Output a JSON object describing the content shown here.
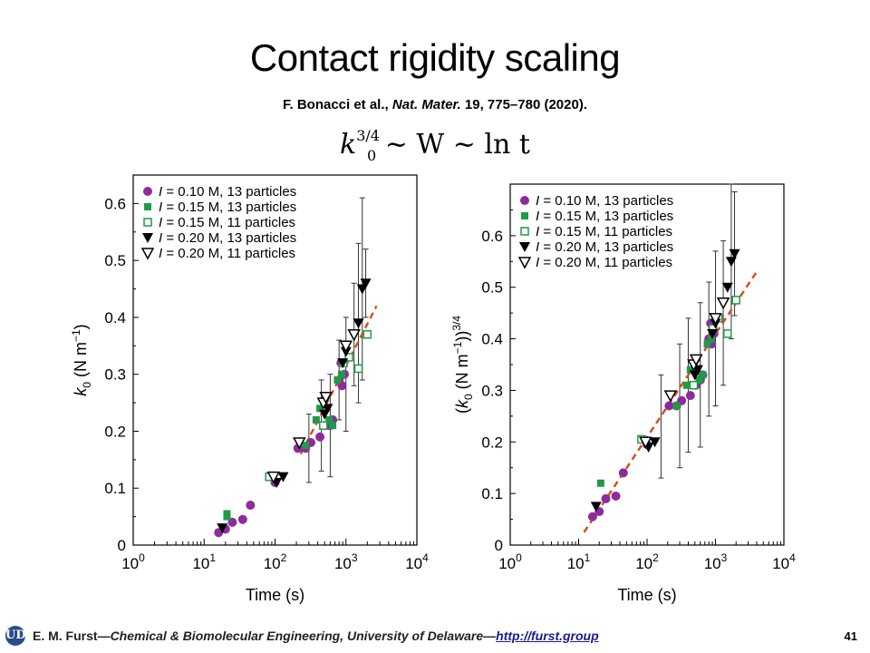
{
  "slide": {
    "title": "Contact rigidity scaling",
    "citation_authors": "F. Bonacci et al., ",
    "citation_journal": "Nat. Mater.",
    "citation_rest": " 19, 775–780 (2020).",
    "equation": {
      "base": "k",
      "sup": "3/4",
      "sub": "0",
      "rest": " ∼ W ∼ ln t"
    }
  },
  "footer": {
    "logo": "UD",
    "author": "E. M. Furst",
    "separator": "—",
    "affiliation": "Chemical & Biomolecular Engineering, University of Delaware",
    "link": "http://furst.group",
    "page": "41"
  },
  "colors": {
    "purple": "#8e2b9c",
    "green": "#1f9b48",
    "black": "#000000",
    "fit": "#d64a1c"
  },
  "chart_data": [
    {
      "type": "scatter",
      "xlabel": "Time (s)",
      "ylabel": "k0 (N m−1)",
      "xscale": "log",
      "xlim": [
        1,
        10000
      ],
      "ylim": [
        0,
        0.65
      ],
      "xticks": [
        "10^0",
        "10^1",
        "10^2",
        "10^3",
        "10^4"
      ],
      "yticks": [
        "0",
        "0.1",
        "0.2",
        "0.3",
        "0.4",
        "0.5",
        "0.6"
      ],
      "legend": "top-left",
      "series": [
        {
          "name": "I = 0.10 M, 13 particles",
          "marker": "circle",
          "points": [
            [
              16,
              0.022
            ],
            [
              20,
              0.028
            ],
            [
              25,
              0.04
            ],
            [
              35,
              0.045
            ],
            [
              45,
              0.07
            ],
            [
              100,
              0.11
            ],
            [
              210,
              0.17
            ],
            [
              270,
              0.17
            ],
            [
              320,
              0.18
            ],
            [
              430,
              0.19
            ],
            [
              520,
              0.21
            ],
            [
              600,
              0.21
            ],
            [
              650,
              0.22
            ],
            [
              800,
              0.29
            ],
            [
              850,
              0.32
            ],
            [
              880,
              0.28
            ],
            [
              950,
              0.3
            ]
          ]
        },
        {
          "name": "I = 0.15 M, 13 particles",
          "marker": "square",
          "points": [
            [
              21,
              0.05
            ],
            [
              21,
              0.055
            ],
            [
              270,
              0.175
            ],
            [
              380,
              0.22
            ],
            [
              430,
              0.24
            ],
            [
              580,
              0.22
            ],
            [
              650,
              0.21
            ],
            [
              760,
              0.29
            ],
            [
              870,
              0.3
            ]
          ]
        },
        {
          "name": "I = 0.15 M, 11 particles",
          "marker": "open-square",
          "points": [
            [
              83,
              0.12
            ],
            [
              480,
              0.21
            ],
            [
              920,
              0.32
            ],
            [
              1100,
              0.33
            ],
            [
              1500,
              0.31
            ],
            [
              2000,
              0.37
            ]
          ]
        },
        {
          "name": "I = 0.20 M, 13 particles",
          "marker": "triangle-down",
          "points": [
            [
              18,
              0.03
            ],
            [
              105,
              0.11
            ],
            [
              130,
              0.12
            ],
            [
              500,
              0.23
            ],
            [
              550,
              0.24
            ],
            [
              900,
              0.32
            ],
            [
              1000,
              0.34
            ],
            [
              1500,
              0.39
            ],
            [
              1700,
              0.45
            ],
            [
              1900,
              0.46
            ]
          ]
        },
        {
          "name": "I = 0.20 M, 11 particles",
          "marker": "open-triangle-down",
          "points": [
            [
              95,
              0.12
            ],
            [
              220,
              0.18
            ],
            [
              480,
              0.25
            ],
            [
              520,
              0.26
            ],
            [
              1000,
              0.35
            ],
            [
              1300,
              0.37
            ]
          ]
        }
      ],
      "errorbars": [
        [
          300,
          0.17,
          0.06
        ],
        [
          450,
          0.21,
          0.08
        ],
        [
          600,
          0.21,
          0.09
        ],
        [
          800,
          0.29,
          0.07
        ],
        [
          1000,
          0.3,
          0.1
        ],
        [
          1300,
          0.37,
          0.09
        ],
        [
          1500,
          0.39,
          0.14
        ],
        [
          1700,
          0.45,
          0.16
        ],
        [
          1900,
          0.46,
          0.06
        ]
      ],
      "fit": {
        "style": "dashed",
        "points": [
          [
            230,
            0.16
          ],
          [
            2700,
            0.42
          ]
        ]
      }
    },
    {
      "type": "scatter",
      "xlabel": "Time (s)",
      "ylabel": "(k0 (N m−1))3/4",
      "xscale": "log",
      "xlim": [
        1,
        10000
      ],
      "ylim": [
        0,
        0.7
      ],
      "xticks": [
        "10^0",
        "10^1",
        "10^2",
        "10^3",
        "10^4"
      ],
      "yticks": [
        "0",
        "0.1",
        "0.2",
        "0.3",
        "0.4",
        "0.5",
        "0.6"
      ],
      "legend": "top-left",
      "series": [
        {
          "name": "I = 0.10 M, 13 particles",
          "marker": "circle",
          "points": [
            [
              16,
              0.055
            ],
            [
              20,
              0.065
            ],
            [
              25,
              0.09
            ],
            [
              35,
              0.095
            ],
            [
              45,
              0.14
            ],
            [
              100,
              0.195
            ],
            [
              210,
              0.27
            ],
            [
              270,
              0.27
            ],
            [
              320,
              0.28
            ],
            [
              430,
              0.29
            ],
            [
              520,
              0.31
            ],
            [
              600,
              0.32
            ],
            [
              650,
              0.33
            ],
            [
              800,
              0.4
            ],
            [
              850,
              0.43
            ],
            [
              880,
              0.39
            ],
            [
              950,
              0.41
            ]
          ]
        },
        {
          "name": "I = 0.15 M, 13 particles",
          "marker": "square",
          "points": [
            [
              21,
              0.12
            ],
            [
              270,
              0.27
            ],
            [
              380,
              0.31
            ],
            [
              430,
              0.34
            ],
            [
              580,
              0.32
            ],
            [
              650,
              0.33
            ],
            [
              760,
              0.39
            ],
            [
              870,
              0.4
            ]
          ]
        },
        {
          "name": "I = 0.15 M, 11 particles",
          "marker": "open-square",
          "points": [
            [
              83,
              0.205
            ],
            [
              480,
              0.31
            ],
            [
              920,
              0.42
            ],
            [
              1100,
              0.44
            ],
            [
              1500,
              0.41
            ],
            [
              2000,
              0.475
            ]
          ]
        },
        {
          "name": "I = 0.20 M, 13 particles",
          "marker": "triangle-down",
          "points": [
            [
              18,
              0.075
            ],
            [
              105,
              0.19
            ],
            [
              130,
              0.2
            ],
            [
              500,
              0.33
            ],
            [
              550,
              0.34
            ],
            [
              900,
              0.41
            ],
            [
              1000,
              0.43
            ],
            [
              1500,
              0.5
            ],
            [
              1700,
              0.55
            ],
            [
              1900,
              0.565
            ]
          ]
        },
        {
          "name": "I = 0.20 M, 11 particles",
          "marker": "open-triangle-down",
          "points": [
            [
              95,
              0.2
            ],
            [
              220,
              0.29
            ],
            [
              480,
              0.35
            ],
            [
              520,
              0.36
            ],
            [
              1000,
              0.44
            ],
            [
              1300,
              0.47
            ]
          ]
        }
      ],
      "errorbars": [
        [
          160,
          0.23,
          0.1
        ],
        [
          300,
          0.27,
          0.12
        ],
        [
          400,
          0.31,
          0.13
        ],
        [
          600,
          0.33,
          0.14
        ],
        [
          800,
          0.38,
          0.13
        ],
        [
          1000,
          0.42,
          0.15
        ],
        [
          1300,
          0.45,
          0.14
        ],
        [
          1700,
          0.55,
          0.15
        ],
        [
          1900,
          0.565,
          0.12
        ]
      ],
      "fit": {
        "style": "dashed",
        "points": [
          [
            12,
            0.025
          ],
          [
            4000,
            0.53
          ]
        ]
      }
    }
  ]
}
